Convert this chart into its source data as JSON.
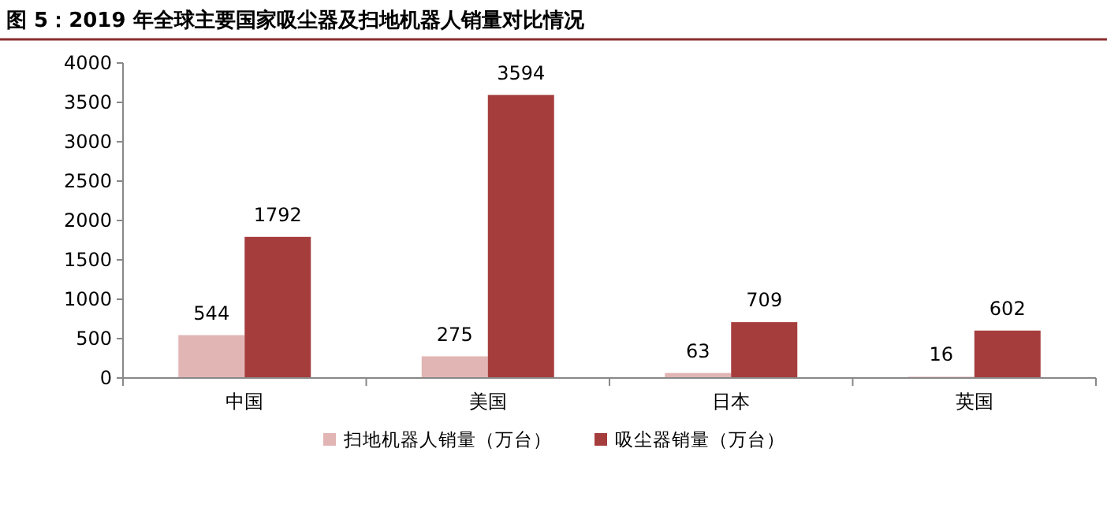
{
  "chart_data": {
    "type": "bar",
    "title": "图 5：2019 年全球主要国家吸尘器及扫地机器人销量对比情况",
    "categories": [
      "中国",
      "美国",
      "日本",
      "英国"
    ],
    "series": [
      {
        "name": "扫地机器人销量（万台）",
        "color": "#e2b5b5",
        "values": [
          544,
          275,
          63,
          16
        ]
      },
      {
        "name": "吸尘器销量（万台）",
        "color": "#a63d3d",
        "values": [
          1792,
          3594,
          709,
          602
        ]
      }
    ],
    "ylim": [
      0,
      4000
    ],
    "yticks": [
      0,
      500,
      1000,
      1500,
      2000,
      2500,
      3000,
      3500,
      4000
    ],
    "data_labels": true,
    "legend": "bottom",
    "grid": false
  }
}
